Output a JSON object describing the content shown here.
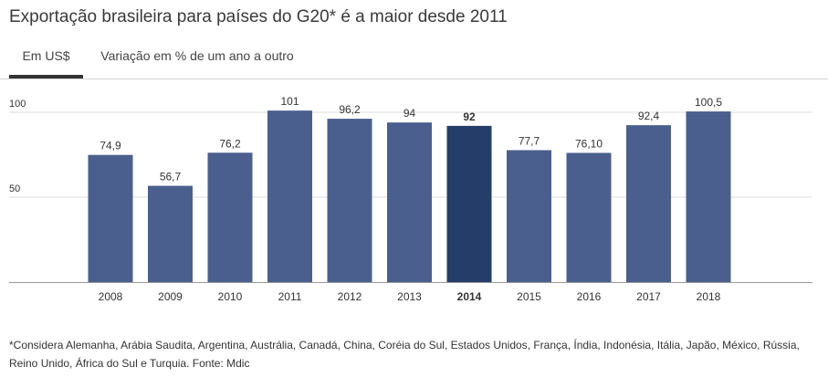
{
  "title": "Exportação brasileira para países do G20* é a maior desde 2011",
  "tabs": [
    {
      "label": "Em US$",
      "active": true
    },
    {
      "label": "Variação em % de um ano a outro",
      "active": false
    }
  ],
  "footnote": "*Considera Alemanha, Arábia Saudita, Argentina, Austrália, Canadá, China, Coréia do Sul, Estados Unidos, França, Índia, Indonésia, Itália, Japão, México, Rússia, Reino Unido, África do Sul e Turquia. Fonte: Mdic",
  "colors": {
    "bar": "#4b5f8e",
    "bar_highlight": "#253d69",
    "grid": "#dddddd",
    "axis": "#999999",
    "text": "#333333"
  },
  "chart_data": {
    "type": "bar",
    "categories": [
      "2008",
      "2009",
      "2010",
      "2011",
      "2012",
      "2013",
      "2014",
      "2015",
      "2016",
      "2017",
      "2018"
    ],
    "values": [
      74.9,
      56.7,
      76.2,
      101,
      96.2,
      94,
      92,
      77.7,
      76.1,
      92.4,
      100.5
    ],
    "value_labels": [
      "74,9",
      "56,7",
      "76,2",
      "101",
      "96,2",
      "94",
      "92",
      "77,7",
      "76,10",
      "92,4",
      "100,5"
    ],
    "highlight": "2014",
    "yticks": [
      50,
      100
    ],
    "ylim": [
      0,
      100
    ],
    "grid": true,
    "title": "",
    "xlabel": "",
    "ylabel": ""
  }
}
